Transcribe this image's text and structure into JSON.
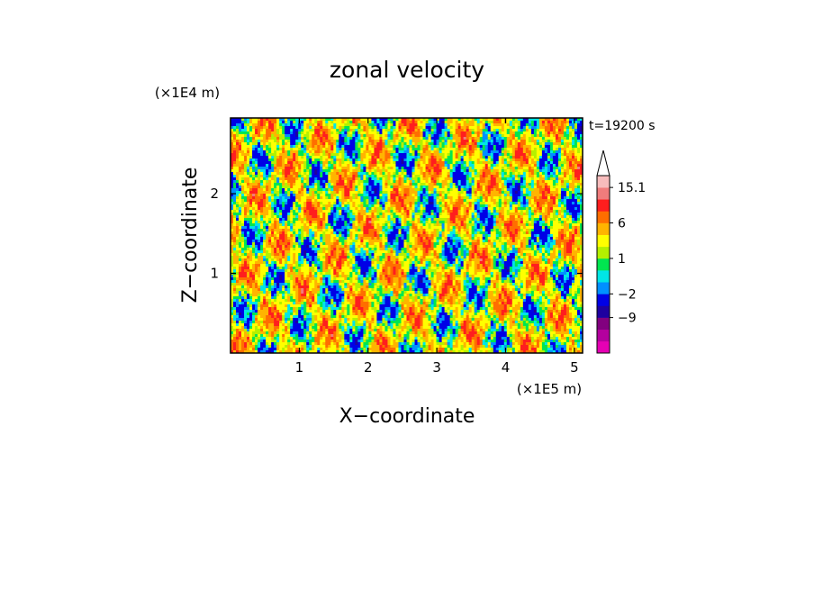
{
  "chart_data": {
    "type": "heatmap",
    "title": "zonal velocity",
    "xlabel": "X−coordinate",
    "ylabel": "Z−coordinate",
    "x_scale_label": "(×1E5 m)",
    "y_scale_label": "(×1E4 m)",
    "time_label": "t=19200 s",
    "xlim": [
      0,
      5.12
    ],
    "ylim": [
      0,
      2.95
    ],
    "x_ticks": [
      1,
      2,
      3,
      4,
      5
    ],
    "y_ticks": [
      1,
      2
    ],
    "colorbar": {
      "levels": [
        -15,
        -12,
        -9,
        -6,
        -2,
        -1,
        0,
        1,
        2,
        4,
        6,
        8,
        12,
        15.1
      ],
      "colors": [
        "#e600b4",
        "#b4009e",
        "#82007f",
        "#1e00a0",
        "#0000e6",
        "#0090ff",
        "#00e6e6",
        "#00e650",
        "#b4f000",
        "#ffff00",
        "#ffb400",
        "#ff6e00",
        "#ff1e1e",
        "#f07c7c",
        "#f7bcbc"
      ],
      "tick_labels": [
        "15.1",
        "6",
        "1",
        "−2",
        "−9"
      ],
      "tick_values": [
        15.1,
        6,
        1,
        -2,
        -9
      ],
      "extend_max": true
    },
    "field_description": "turbulent zonal velocity field; mostly yellow/orange (positive) with green/cyan/blue patches (negative)"
  }
}
